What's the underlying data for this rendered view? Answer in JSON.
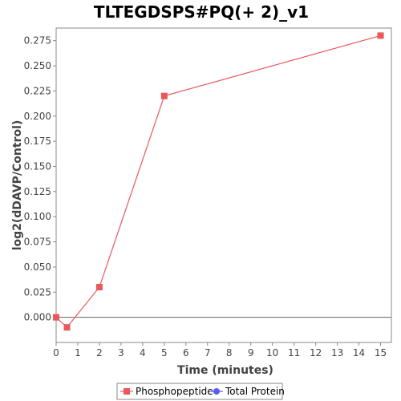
{
  "chart_data": {
    "type": "line",
    "title": "TLTEGDSPS#PQ(+ 2)_v1",
    "xlabel": "Time (minutes)",
    "ylabel": "log2(dDAVP/Control)",
    "xlim": [
      0,
      15.5
    ],
    "ylim": [
      -0.025,
      0.2875
    ],
    "xticks": [
      0,
      1,
      2,
      3,
      4,
      5,
      6,
      7,
      8,
      9,
      10,
      11,
      12,
      13,
      14,
      15
    ],
    "xtick_labels": [
      "0",
      "1",
      "2",
      "3",
      "4",
      "5",
      "6",
      "7",
      "8",
      "9",
      "10",
      "11",
      "12",
      "13",
      "14",
      "15"
    ],
    "yticks": [
      0.0,
      0.025,
      0.05,
      0.075,
      0.1,
      0.125,
      0.15,
      0.175,
      0.2,
      0.225,
      0.25,
      0.275
    ],
    "ytick_labels": [
      "0.000",
      "0.025",
      "0.050",
      "0.075",
      "0.100",
      "0.125",
      "0.150",
      "0.175",
      "0.200",
      "0.225",
      "0.250",
      "0.275"
    ],
    "zero_line": true,
    "grid": false,
    "legend_position": "bottom",
    "series": [
      {
        "name": "Phosphopeptide",
        "color": "#e8585c",
        "marker": "square",
        "x": [
          0,
          0.5,
          2,
          5,
          15
        ],
        "y": [
          0.0,
          -0.01,
          0.03,
          0.22,
          0.28
        ]
      },
      {
        "name": "Total Protein",
        "color": "#5b5bf0",
        "marker": "circle",
        "x": [],
        "y": []
      }
    ]
  }
}
